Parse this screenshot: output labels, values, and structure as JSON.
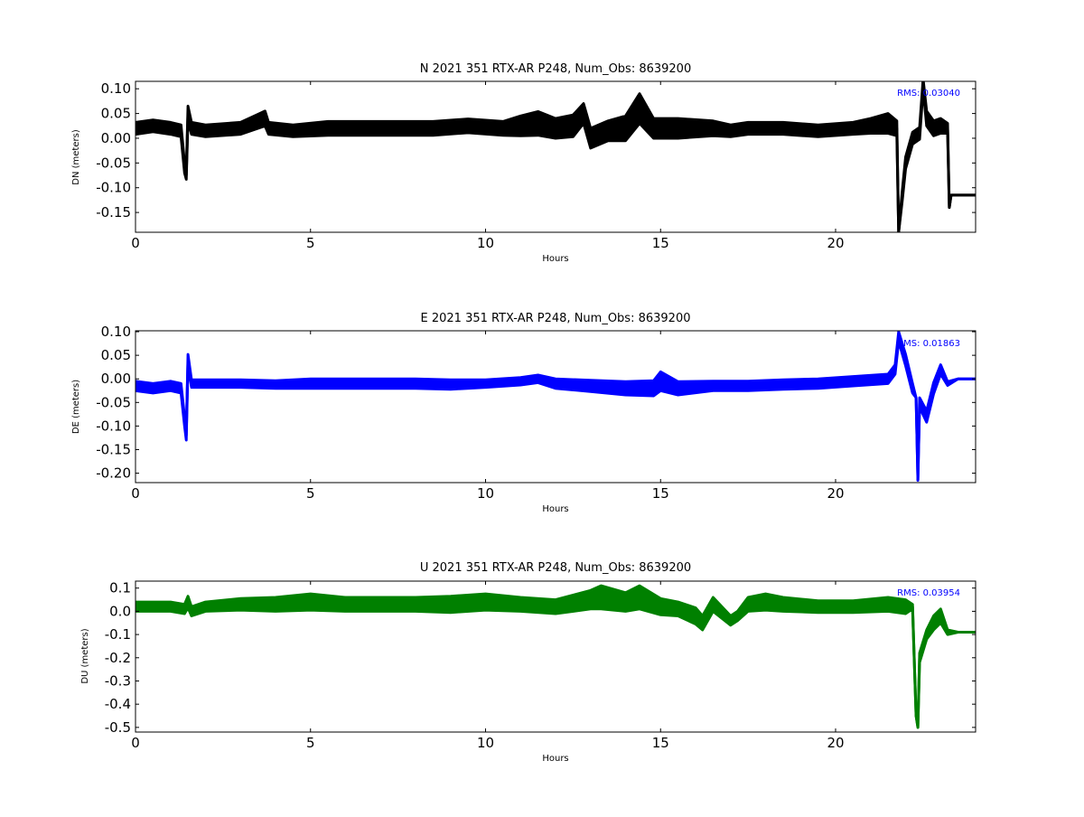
{
  "figure": {
    "background": "#ffffff"
  },
  "chart_data": [
    {
      "type": "line",
      "title": "N 2021 351 RTX-AR  P248, Num_Obs: 8639200",
      "xlabel": "Hours",
      "ylabel": "DN (meters)",
      "xlim": [
        0,
        24
      ],
      "ylim": [
        -0.19,
        0.115
      ],
      "xticks": [
        0,
        5,
        10,
        15,
        20
      ],
      "xtick_labels": [
        "0",
        "5",
        "10",
        "15",
        "20"
      ],
      "yticks": [
        0.1,
        0.05,
        0.0,
        -0.05,
        -0.1,
        -0.15
      ],
      "ytick_labels": [
        "0.10",
        "0.05",
        "0.00",
        "-0.05",
        "-0.10",
        "-0.15"
      ],
      "annotation": "RMS:  0.03040",
      "annotation_color": "#0000ff",
      "color": "#000000",
      "grid": false,
      "series": [
        {
          "x": [
            0,
            0.5,
            1.0,
            1.3,
            1.4,
            1.45,
            1.5,
            1.6,
            2.0,
            3.0,
            3.7,
            3.8,
            4.5,
            5.5,
            6.5,
            7.5,
            8.5,
            9.5,
            10.5,
            11.0,
            11.5,
            12.0,
            12.5,
            12.8,
            13.0,
            13.5,
            14.0,
            14.4,
            14.8,
            15.5,
            16.5,
            17.0,
            17.5,
            18.5,
            19.5,
            20.5,
            21.0,
            21.5,
            21.75,
            21.8,
            21.9,
            22.0,
            22.2,
            22.4,
            22.5,
            22.6,
            22.8,
            23.0,
            23.2,
            23.25,
            23.3,
            23.5,
            24.0
          ],
          "y": [
            0.02,
            0.025,
            0.02,
            0.015,
            -0.06,
            -0.075,
            0.05,
            0.02,
            0.015,
            0.02,
            0.04,
            0.02,
            0.015,
            0.02,
            0.02,
            0.02,
            0.02,
            0.025,
            0.02,
            0.025,
            0.03,
            0.02,
            0.025,
            0.05,
            0.0,
            0.015,
            0.02,
            0.06,
            0.02,
            0.02,
            0.02,
            0.015,
            0.02,
            0.02,
            0.015,
            0.02,
            0.025,
            0.03,
            0.02,
            -0.19,
            -0.12,
            -0.05,
            0.0,
            0.01,
            0.11,
            0.04,
            0.02,
            0.025,
            0.02,
            -0.14,
            -0.115,
            -0.115,
            -0.115
          ],
          "band": [
            0.012,
            0.012,
            0.012,
            0.012,
            0.01,
            0.008,
            0.015,
            0.012,
            0.012,
            0.012,
            0.015,
            0.012,
            0.012,
            0.014,
            0.014,
            0.014,
            0.014,
            0.014,
            0.014,
            0.02,
            0.024,
            0.02,
            0.022,
            0.02,
            0.02,
            0.02,
            0.025,
            0.03,
            0.02,
            0.02,
            0.015,
            0.012,
            0.012,
            0.012,
            0.012,
            0.012,
            0.015,
            0.02,
            0.015,
            0.0,
            0.01,
            0.012,
            0.012,
            0.012,
            0.01,
            0.015,
            0.015,
            0.015,
            0.01,
            0.0,
            0.0,
            0.0,
            0.0
          ]
        }
      ]
    },
    {
      "type": "line",
      "title": "E 2021 351 RTX-AR  P248, Num_Obs: 8639200",
      "xlabel": "Hours",
      "ylabel": "DE (meters)",
      "xlim": [
        0,
        24
      ],
      "ylim": [
        -0.22,
        0.102
      ],
      "xticks": [
        0,
        5,
        10,
        15,
        20
      ],
      "xtick_labels": [
        "0",
        "5",
        "10",
        "15",
        "20"
      ],
      "yticks": [
        0.1,
        0.05,
        0.0,
        -0.05,
        -0.1,
        -0.15,
        -0.2
      ],
      "ytick_labels": [
        "0.10",
        "0.05",
        "0.00",
        "-0.05",
        "-0.10",
        "-0.15",
        "-0.20"
      ],
      "annotation": "RMS:  0.01863",
      "annotation_color": "#0000ff",
      "color": "#0000ff",
      "grid": false,
      "series": [
        {
          "x": [
            0,
            0.5,
            1.0,
            1.3,
            1.4,
            1.45,
            1.5,
            1.6,
            2.0,
            3.0,
            4.0,
            5.0,
            6.0,
            7.0,
            8.0,
            9.0,
            10.0,
            11.0,
            11.5,
            12.0,
            13.0,
            14.0,
            14.8,
            15.0,
            15.5,
            16.5,
            17.5,
            18.5,
            19.5,
            20.5,
            21.5,
            21.7,
            21.8,
            22.0,
            22.2,
            22.3,
            22.35,
            22.4,
            22.6,
            22.8,
            23.0,
            23.2,
            23.5,
            24.0
          ],
          "y": [
            -0.015,
            -0.02,
            -0.015,
            -0.02,
            -0.09,
            -0.12,
            0.04,
            -0.01,
            -0.01,
            -0.01,
            -0.012,
            -0.01,
            -0.01,
            -0.01,
            -0.01,
            -0.012,
            -0.01,
            -0.005,
            0.0,
            -0.01,
            -0.015,
            -0.02,
            -0.02,
            -0.005,
            -0.02,
            -0.015,
            -0.015,
            -0.012,
            -0.01,
            -0.005,
            0.0,
            0.02,
            0.09,
            0.04,
            -0.02,
            -0.04,
            -0.215,
            -0.05,
            -0.08,
            -0.02,
            0.02,
            -0.01,
            0.0,
            0.0
          ],
          "band": [
            0.01,
            0.01,
            0.01,
            0.01,
            0.01,
            0.01,
            0.012,
            0.008,
            0.008,
            0.008,
            0.008,
            0.01,
            0.01,
            0.01,
            0.01,
            0.01,
            0.008,
            0.008,
            0.008,
            0.01,
            0.012,
            0.014,
            0.016,
            0.02,
            0.014,
            0.01,
            0.01,
            0.01,
            0.01,
            0.01,
            0.01,
            0.01,
            0.01,
            0.012,
            0.01,
            0.0,
            0.0,
            0.01,
            0.012,
            0.012,
            0.01,
            0.004,
            0.0,
            0.0
          ]
        }
      ]
    },
    {
      "type": "line",
      "title": "U 2021 351 RTX-AR  P248, Num_Obs: 8639200",
      "xlabel": "Hours",
      "ylabel": "DU (meters)",
      "xlim": [
        0,
        24
      ],
      "ylim": [
        -0.52,
        0.13
      ],
      "xticks": [
        0,
        5,
        10,
        15,
        20
      ],
      "xtick_labels": [
        "0",
        "5",
        "10",
        "15",
        "20"
      ],
      "yticks": [
        0.1,
        0.0,
        -0.1,
        -0.2,
        -0.3,
        -0.4,
        -0.5
      ],
      "ytick_labels": [
        "0.1",
        "0.0",
        "-0.1",
        "-0.2",
        "-0.3",
        "-0.4",
        "-0.5"
      ],
      "annotation": "RMS:  0.03954",
      "annotation_color": "#0000ff",
      "color": "#008000",
      "grid": false,
      "series": [
        {
          "x": [
            0,
            0.5,
            1.0,
            1.4,
            1.5,
            1.6,
            2.0,
            3.0,
            4.0,
            5.0,
            6.0,
            7.0,
            8.0,
            9.0,
            10.0,
            11.0,
            12.0,
            13.0,
            13.3,
            14.0,
            14.4,
            15.0,
            15.5,
            16.0,
            16.2,
            16.5,
            17.0,
            17.2,
            17.5,
            18.0,
            18.5,
            19.5,
            20.5,
            21.5,
            22.0,
            22.2,
            22.3,
            22.35,
            22.4,
            22.6,
            22.8,
            23.0,
            23.2,
            23.5,
            24.0
          ],
          "y": [
            0.02,
            0.02,
            0.02,
            0.01,
            0.04,
            0.0,
            0.02,
            0.03,
            0.03,
            0.04,
            0.03,
            0.03,
            0.03,
            0.03,
            0.04,
            0.03,
            0.02,
            0.05,
            0.06,
            0.04,
            0.06,
            0.02,
            0.01,
            -0.02,
            -0.05,
            0.03,
            -0.04,
            -0.02,
            0.03,
            0.04,
            0.03,
            0.02,
            0.02,
            0.03,
            0.02,
            0.02,
            -0.45,
            -0.5,
            -0.2,
            -0.1,
            -0.05,
            -0.02,
            -0.09,
            -0.09,
            -0.09
          ],
          "band": [
            0.02,
            0.02,
            0.02,
            0.02,
            0.025,
            0.02,
            0.02,
            0.025,
            0.03,
            0.035,
            0.03,
            0.03,
            0.03,
            0.035,
            0.035,
            0.03,
            0.03,
            0.04,
            0.05,
            0.04,
            0.05,
            0.035,
            0.03,
            0.035,
            0.03,
            0.03,
            0.02,
            0.02,
            0.03,
            0.035,
            0.03,
            0.025,
            0.025,
            0.03,
            0.03,
            0.01,
            0.0,
            0.0,
            0.02,
            0.02,
            0.03,
            0.03,
            0.01,
            0.0,
            0.0
          ]
        }
      ]
    }
  ]
}
